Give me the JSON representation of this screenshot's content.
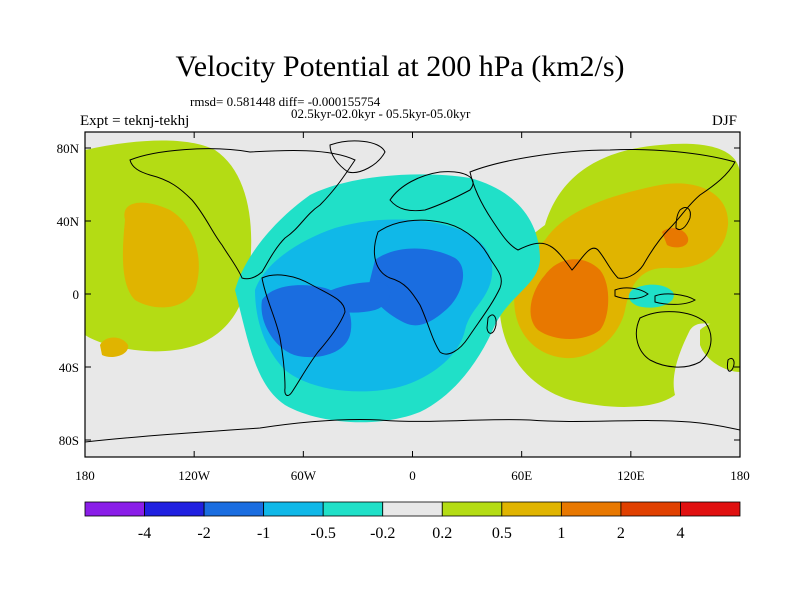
{
  "title": "Velocity Potential at 200 hPa (km2/s)",
  "stats": "rmsd= 0.581448 diff= -0.000155754",
  "diff_range": "02.5kyr-02.0kyr - 05.5kyr-05.0kyr",
  "expt_label": "Expt = teknj-tekhj",
  "season": "DJF",
  "lat_ticks": [
    {
      "label": "80N",
      "lat": 80
    },
    {
      "label": "40N",
      "lat": 40
    },
    {
      "label": "0",
      "lat": 0
    },
    {
      "label": "40S",
      "lat": -40
    },
    {
      "label": "80S",
      "lat": -80
    }
  ],
  "lon_ticks": [
    {
      "label": "180",
      "lon": -180
    },
    {
      "label": "120W",
      "lon": -120
    },
    {
      "label": "60W",
      "lon": -60
    },
    {
      "label": "0",
      "lon": 0
    },
    {
      "label": "60E",
      "lon": 60
    },
    {
      "label": "120E",
      "lon": 120
    },
    {
      "label": "180",
      "lon": 180
    }
  ],
  "colorbar": {
    "colors": [
      "#8a1ee8",
      "#2020e0",
      "#1a6de0",
      "#10b8e8",
      "#20e0c8",
      "#e8e8e8",
      "#b4dc14",
      "#e0b400",
      "#e87800",
      "#e04000",
      "#e01010"
    ],
    "labels": [
      "-4",
      "-2",
      "-1",
      "-0.5",
      "-0.2",
      "0.2",
      "0.5",
      "1",
      "2",
      "4"
    ]
  },
  "field_colors": {
    "background": "#e8e8e8",
    "pos_0_2": "#b4dc14",
    "pos_0_5": "#e0b400",
    "pos_1": "#e87800",
    "neg_0_2": "#20e0c8",
    "neg_0_5": "#10b8e8",
    "neg_1": "#1a6de0"
  }
}
